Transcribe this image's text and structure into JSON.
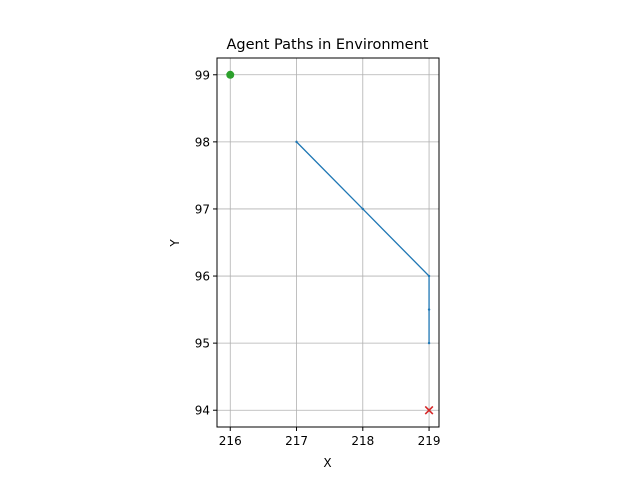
{
  "chart_data": {
    "type": "line",
    "title": "Agent Paths in Environment",
    "xlabel": "X",
    "ylabel": "Y",
    "xlim": [
      215.8,
      219.15
    ],
    "ylim": [
      93.75,
      99.25
    ],
    "xticks": [
      216,
      217,
      218,
      219
    ],
    "yticks": [
      94,
      95,
      96,
      97,
      98,
      99
    ],
    "grid": true,
    "series": [
      {
        "x": [
          217,
          218,
          219,
          219,
          219
        ],
        "y": [
          98,
          97,
          96,
          95.5,
          95
        ],
        "color": "#1f77b4"
      }
    ],
    "markers": [
      {
        "kind": "start",
        "shape": "circle",
        "x": 216,
        "y": 99,
        "color": "#2ca02c"
      },
      {
        "kind": "end",
        "shape": "x",
        "x": 219,
        "y": 94,
        "color": "#d62728"
      }
    ]
  }
}
